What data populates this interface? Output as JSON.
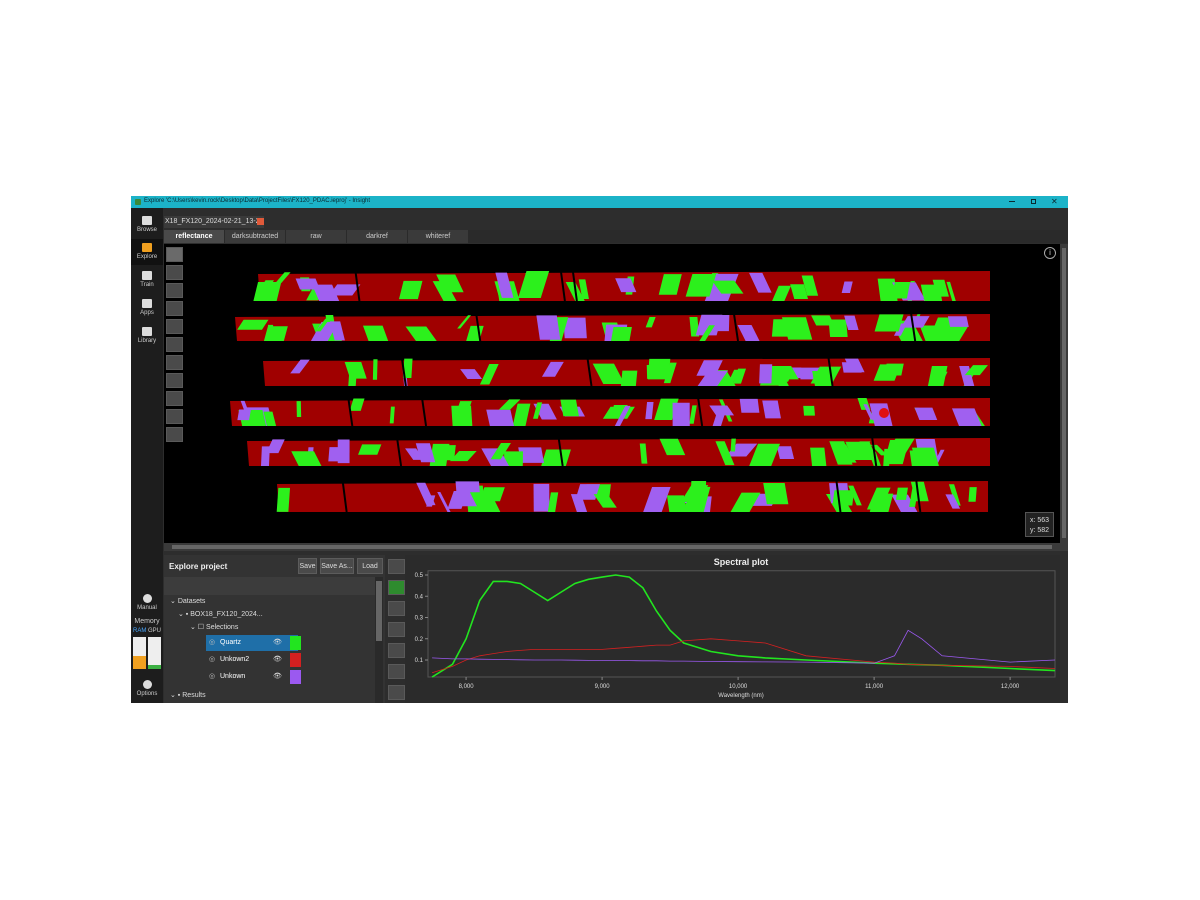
{
  "window": {
    "title": "Explore 'C:\\Users\\kevin.rock\\Desktop\\Data\\ProjectFiles\\FX120_PDAC.ieproj' - Insight"
  },
  "sidebar": {
    "items": [
      "Browse",
      "Explore",
      "Train",
      "Apps",
      "Library"
    ],
    "manual": "Manual",
    "memory": "Memory",
    "ram": "RAM",
    "gpu": "GPU",
    "options": "Options"
  },
  "tab": {
    "title": "X18_FX120_2024-02-21_13-2"
  },
  "subtabs": [
    "reflectance",
    "darksubtracted",
    "raw",
    "darkref",
    "whiteref"
  ],
  "coordinates": {
    "x": "x: 563",
    "y": "y: 582"
  },
  "project": {
    "title": "Explore project",
    "buttons": [
      "Save",
      "Save As...",
      "Load"
    ],
    "tree": {
      "datasets": "Datasets",
      "dataset": "BOX18_FX120_2024...",
      "selections": "Selections",
      "items": [
        "Quartz",
        "Unkown2",
        "Unkown"
      ],
      "results": "Results"
    }
  },
  "spectral_plot": {
    "type": "line",
    "title": "Spectral plot",
    "x_label": "Wavelength (nm)",
    "x": [
      7750,
      7900,
      8000,
      8100,
      8200,
      8300,
      8400,
      8500,
      8600,
      8700,
      8800,
      8900,
      9000,
      9100,
      9200,
      9300,
      9400,
      9500,
      9600,
      9800,
      10000,
      10200,
      10500,
      11000,
      11150,
      11250,
      11350,
      11500,
      12000,
      12330
    ],
    "series": [
      {
        "name": "Quartz",
        "color": "#22e51f",
        "values": [
          0.02,
          0.08,
          0.2,
          0.38,
          0.47,
          0.47,
          0.46,
          0.42,
          0.38,
          0.42,
          0.46,
          0.48,
          0.49,
          0.5,
          0.49,
          0.44,
          0.33,
          0.24,
          0.18,
          0.14,
          0.12,
          0.11,
          0.1,
          0.085,
          0.082,
          0.08,
          0.078,
          0.075,
          0.06,
          0.05
        ]
      },
      {
        "name": "Unkown2",
        "color": "#d42020",
        "values": [
          0.04,
          0.07,
          0.1,
          0.12,
          0.13,
          0.14,
          0.145,
          0.15,
          0.15,
          0.15,
          0.15,
          0.15,
          0.15,
          0.155,
          0.16,
          0.165,
          0.17,
          0.17,
          0.19,
          0.2,
          0.19,
          0.18,
          0.12,
          0.09,
          0.085,
          0.08,
          0.078,
          0.075,
          0.07,
          0.06
        ]
      },
      {
        "name": "Unkown",
        "color": "#9b59f0",
        "values": [
          0.11,
          0.105,
          0.105,
          0.104,
          0.103,
          0.102,
          0.101,
          0.1,
          0.1,
          0.1,
          0.099,
          0.098,
          0.098,
          0.097,
          0.097,
          0.096,
          0.096,
          0.095,
          0.095,
          0.093,
          0.092,
          0.091,
          0.09,
          0.085,
          0.12,
          0.24,
          0.2,
          0.12,
          0.09,
          0.1
        ]
      }
    ],
    "xlim": [
      7720,
      12330
    ],
    "ylim": [
      0.02,
      0.52
    ],
    "xticks": [
      {
        "value": 8000,
        "label": "8,000"
      },
      {
        "value": 9000,
        "label": "9,000"
      },
      {
        "value": 10000,
        "label": "10,000"
      },
      {
        "value": 11000,
        "label": "11,000"
      },
      {
        "value": 12000,
        "label": "12,000"
      }
    ],
    "yticks": [
      0.1,
      0.2,
      0.3,
      0.4,
      0.5
    ]
  }
}
